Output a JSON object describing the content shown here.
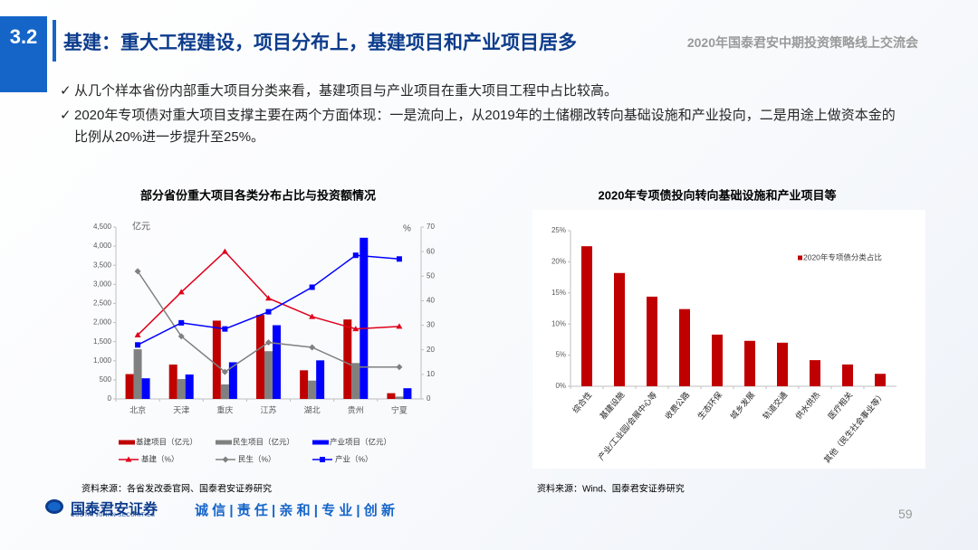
{
  "header": {
    "section": "3.2",
    "title": "基建：重大工程建设，项目分布上，基建项目和产业项目居多",
    "event": "2020年国泰君安中期投资策略线上交流会"
  },
  "bullets": [
    "从几个样本省份内部重大项目分类来看，基建项目与产业项目在重大项目工程中占比较高。",
    "2020年专项债对重大项目支撑主要在两个方面体现：一是流向上，从2019年的土储棚改转向基础设施和产业投向，二是用途上做资本金的比例从20%进一步提升至25%。"
  ],
  "chart_data": [
    {
      "type": "bar",
      "title": "部分省份重大项目各类分布占比与投资额情况",
      "y_label": "亿元",
      "y2_label": "%",
      "categories": [
        "北京",
        "天津",
        "重庆",
        "江苏",
        "湖北",
        "贵州",
        "宁夏"
      ],
      "ylim": [
        0,
        4500
      ],
      "yticks": [
        0,
        500,
        {
          "value": 1000,
          "label": "1,000"
        },
        {
          "value": 1500,
          "label": "1,500"
        },
        {
          "value": 2000,
          "label": "2,000"
        },
        {
          "value": 2500,
          "label": "2,500"
        },
        {
          "value": 3000,
          "label": "3,000"
        },
        {
          "value": 3500,
          "label": "3,500"
        },
        {
          "value": 4000,
          "label": "4,000"
        },
        {
          "value": 4500,
          "label": "4,500"
        }
      ],
      "y2lim": [
        0,
        70
      ],
      "y2ticks": [
        0,
        10,
        20,
        30,
        40,
        50,
        60,
        70
      ],
      "series": [
        {
          "name": "基建项目（亿元）",
          "color": "#c00000",
          "values": [
            650,
            900,
            2050,
            2200,
            750,
            2080,
            150
          ]
        },
        {
          "name": "民生项目（亿元）",
          "color": "#808080",
          "values": [
            1300,
            520,
            380,
            1250,
            480,
            940,
            60
          ]
        },
        {
          "name": "产业项目（亿元）",
          "color": "#0000ff",
          "values": [
            540,
            640,
            960,
            1930,
            1010,
            4220,
            280
          ]
        },
        {
          "name": "基建（%）",
          "type": "line",
          "axis": "y2",
          "marker": "triangle",
          "color": "#e0001b",
          "values": [
            26,
            43.5,
            60,
            41,
            33.5,
            28.5,
            29.5
          ]
        },
        {
          "name": "民生（%）",
          "type": "line",
          "axis": "y2",
          "marker": "diamond",
          "color": "#808080",
          "values": [
            52,
            25.5,
            11,
            23,
            21,
            13,
            13
          ]
        },
        {
          "name": "产业（%）",
          "type": "line",
          "axis": "y2",
          "marker": "square",
          "color": "#0000ff",
          "values": [
            22,
            31,
            28.5,
            35.5,
            45.5,
            58.5,
            57
          ]
        }
      ],
      "legend": "bottom",
      "source": "资料来源：各省发改委官网、国泰君安证券研究"
    },
    {
      "type": "bar",
      "title": "2020年专项债投向转向基础设施和产业项目等",
      "categories": [
        "综合性",
        "基建设施",
        "产业/工业园/会展中心等",
        "收费公路",
        "生态环保",
        "城乡发展",
        "轨道交通",
        "供水供热",
        "医疗相关",
        "其他（民生社会事业等）"
      ],
      "ylim": [
        0,
        25
      ],
      "yticks": [
        {
          "value": 0,
          "label": "0%"
        },
        {
          "value": 5,
          "label": "5%"
        },
        {
          "value": 10,
          "label": "10%"
        },
        {
          "value": 15,
          "label": "15%"
        },
        {
          "value": 20,
          "label": "20%"
        },
        {
          "value": 25,
          "label": "25%"
        }
      ],
      "series": [
        {
          "name": "2020年专项债分类占比",
          "color": "#c00000",
          "values": [
            22.5,
            18.2,
            14.4,
            12.4,
            8.3,
            7.3,
            7.0,
            4.2,
            3.5,
            2.0
          ]
        }
      ],
      "legend": "upper right",
      "source": "资料来源：Wind、国泰君安证券研究"
    }
  ],
  "footer": {
    "logo_cn": "国泰君安证券",
    "logo_en": "GUOTAI JUNAN SECURITIES",
    "slogan": "诚 信 | 责 任 | 亲 和 | 专 业 | 创 新",
    "page": 59
  }
}
